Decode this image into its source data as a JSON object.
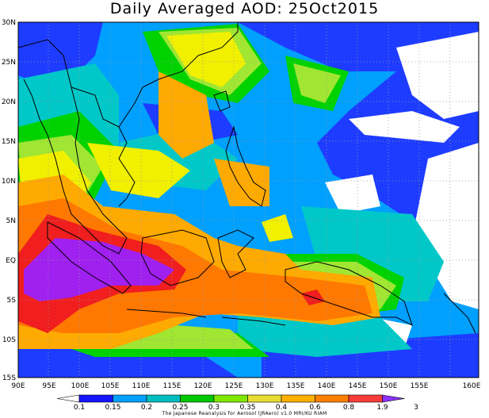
{
  "title": "Daily Averaged AOD: 25Oct2015",
  "lat_labels": [
    "30N",
    "25N",
    "20N",
    "15N",
    "10N",
    "5N",
    "EQ",
    "5S",
    "10S",
    "15S"
  ],
  "lon_labels": [
    "90E",
    "95E",
    "100E",
    "105E",
    "110E",
    "115E",
    "120E",
    "125E",
    "130E",
    "135E",
    "140E",
    "145E",
    "150E",
    "155E",
    "160E"
  ],
  "legend": {
    "levels": [
      "0.1",
      "0.15",
      "0.2",
      "0.25",
      "0.3",
      "0.35",
      "0.4",
      "0.6",
      "0.8",
      "1.9",
      "3"
    ],
    "colors": [
      "#ffffff",
      "#1414ff",
      "#00a0ff",
      "#00bebe",
      "#00c800",
      "#80e600",
      "#e6dc32",
      "#ffaf00",
      "#ff7f00",
      "#fa3c3c",
      "#8c32ff"
    ]
  },
  "credit": "The Japanese Reanalysis for Aerosol (JRAero) v1.0 MRI/KU RIAM",
  "colors": {
    "white": "#ffffff",
    "blue": "#1e3cff",
    "sky": "#00a0ff",
    "teal": "#00c8c8",
    "green": "#00d200",
    "lime": "#a0e632",
    "yellow": "#f0f000",
    "orange": "#ffaa00",
    "dorange": "#ff7800",
    "red": "#f01e1e",
    "purple": "#a020f0"
  }
}
